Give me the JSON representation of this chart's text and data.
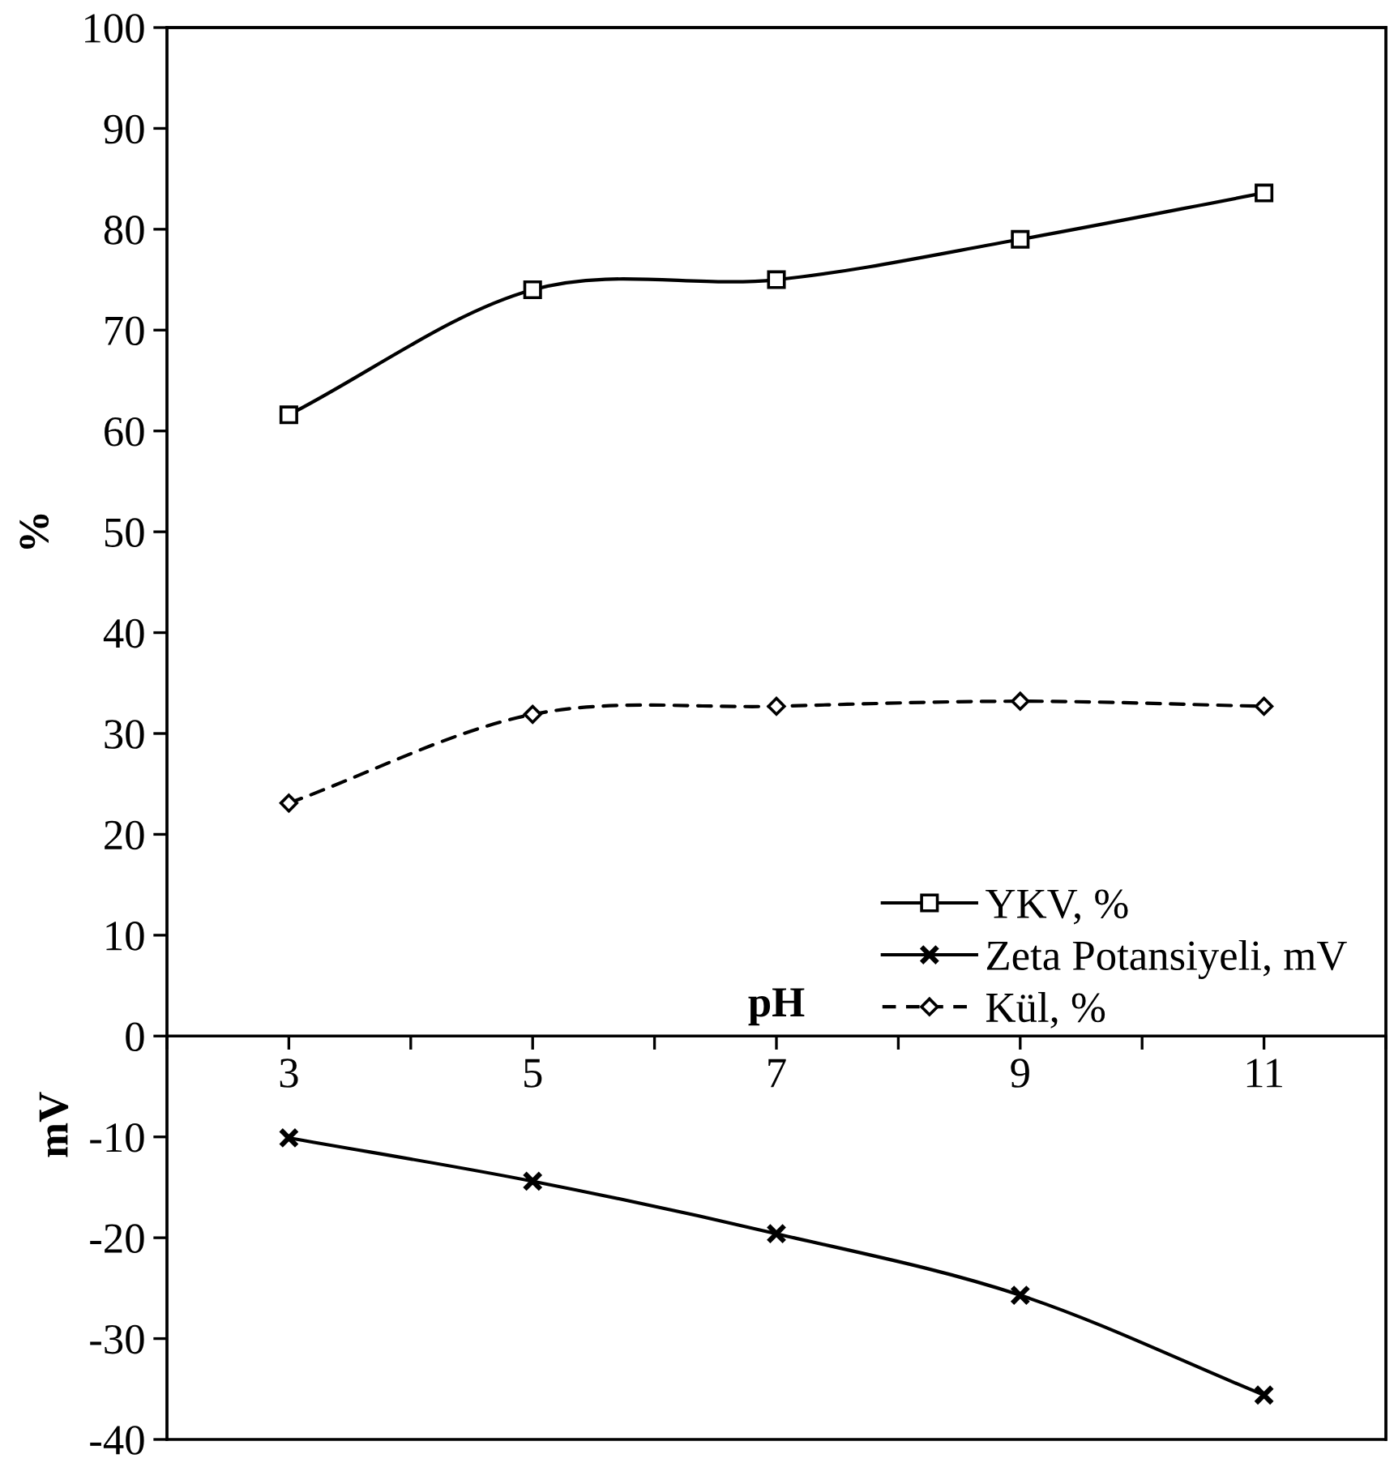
{
  "chart_data": {
    "type": "line",
    "x": [
      3,
      5,
      7,
      9,
      11
    ],
    "xlabel": "pH",
    "ylabel": "%",
    "annotations": [
      "mV"
    ],
    "series": [
      {
        "name": "YKV, %",
        "color": "#000000",
        "values": [
          61.6,
          74.0,
          75.0,
          79.0,
          83.6
        ],
        "marker": "square",
        "line_style": "solid"
      },
      {
        "name": "Zeta Potansiyeli, mV",
        "color": "#000000",
        "values": [
          -10.1,
          -14.4,
          -19.6,
          -25.7,
          -35.6
        ],
        "marker": "cross",
        "line_style": "solid"
      },
      {
        "name": "Kül, %",
        "color": "#000000",
        "values": [
          23.1,
          31.9,
          32.7,
          33.2,
          32.7
        ],
        "marker": "diamond",
        "line_style": "dashed"
      }
    ],
    "xlim": [
      2,
      12
    ],
    "xticks": [
      {
        "value": 2,
        "label": null
      },
      3,
      {
        "value": 4,
        "label": null
      },
      5,
      {
        "value": 6,
        "label": null
      },
      7,
      {
        "value": 8,
        "label": null
      },
      9,
      {
        "value": 10,
        "label": null
      },
      11,
      {
        "value": 12,
        "label": null
      }
    ],
    "ylim": [
      -40,
      100
    ],
    "yticks": [
      -40,
      -30,
      -20,
      -10,
      0,
      10,
      20,
      30,
      40,
      50,
      60,
      70,
      80,
      90,
      100
    ],
    "grid": false,
    "legend": "right"
  }
}
